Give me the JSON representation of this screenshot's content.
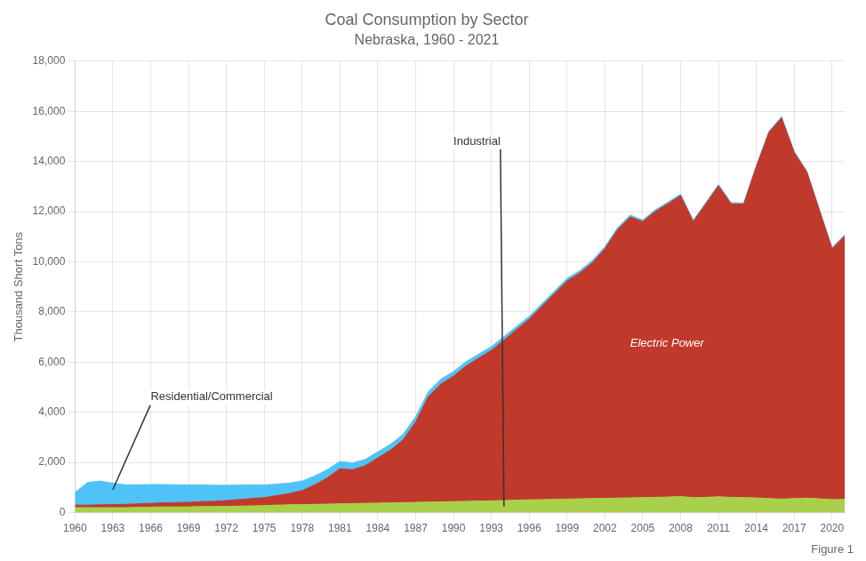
{
  "chart_data": {
    "type": "area",
    "stacked": true,
    "title": "Coal Consumption by Sector",
    "subtitle": "Nebraska, 1960 - 2021",
    "y_label": "Thousand Short Tons",
    "caption": "Figure 1",
    "grid": true,
    "x": [
      1960,
      1961,
      1962,
      1963,
      1964,
      1965,
      1966,
      1967,
      1968,
      1969,
      1970,
      1971,
      1972,
      1973,
      1974,
      1975,
      1976,
      1977,
      1978,
      1979,
      1980,
      1981,
      1982,
      1983,
      1984,
      1985,
      1986,
      1987,
      1988,
      1989,
      1990,
      1991,
      1992,
      1993,
      1994,
      1995,
      1996,
      1997,
      1998,
      1999,
      2000,
      2001,
      2002,
      2003,
      2004,
      2005,
      2006,
      2007,
      2008,
      2009,
      2010,
      2011,
      2012,
      2013,
      2014,
      2015,
      2016,
      2017,
      2018,
      2019,
      2020,
      2021
    ],
    "series": [
      {
        "color": "#a8d04a",
        "values": [
          200,
          200,
          200,
          200,
          200,
          210,
          220,
          230,
          230,
          230,
          240,
          240,
          250,
          260,
          270,
          280,
          300,
          310,
          320,
          330,
          340,
          350,
          360,
          370,
          380,
          390,
          400,
          410,
          420,
          430,
          440,
          450,
          460,
          470,
          480,
          500,
          510,
          520,
          530,
          540,
          550,
          560,
          570,
          580,
          590,
          600,
          610,
          620,
          640,
          600,
          610,
          630,
          610,
          600,
          590,
          560,
          540,
          560,
          580,
          550,
          520,
          530
        ]
      },
      {
        "color": "#c0392b",
        "values": [
          100,
          100,
          110,
          120,
          130,
          140,
          150,
          160,
          170,
          180,
          200,
          210,
          230,
          260,
          290,
          320,
          380,
          450,
          560,
          780,
          1050,
          1400,
          1350,
          1500,
          1800,
          2100,
          2500,
          3200,
          4200,
          4700,
          5000,
          5400,
          5700,
          6000,
          6400,
          6800,
          7200,
          7700,
          8200,
          8700,
          9000,
          9400,
          9950,
          10700,
          11200,
          11000,
          11400,
          11700,
          12000,
          11000,
          11700,
          12400,
          11700,
          11700,
          13200,
          14600,
          15200,
          13800,
          13000,
          11500,
          10000,
          10500
        ]
      },
      {
        "color": "#4fc3f7",
        "values": [
          500,
          900,
          950,
          850,
          780,
          760,
          750,
          730,
          710,
          690,
          670,
          640,
          610,
          580,
          550,
          500,
          460,
          420,
          380,
          350,
          320,
          290,
          270,
          250,
          240,
          230,
          220,
          210,
          200,
          190,
          180,
          170,
          160,
          150,
          140,
          130,
          120,
          110,
          105,
          100,
          95,
          90,
          85,
          80,
          75,
          70,
          65,
          60,
          58,
          55,
          53,
          52,
          50,
          48,
          47,
          45,
          44,
          43,
          42,
          41,
          40,
          39
        ]
      }
    ],
    "xlim": [
      1960,
      2021
    ],
    "xticks": [
      1960,
      1963,
      1966,
      1969,
      1972,
      1975,
      1978,
      1981,
      1984,
      1987,
      1990,
      1993,
      1996,
      1999,
      2002,
      2005,
      2008,
      2011,
      2014,
      2017,
      2020
    ],
    "ylim": [
      0,
      18000
    ],
    "yticks": [
      0,
      {
        "value": 2000,
        "label": "2,000"
      },
      {
        "value": 4000,
        "label": "4,000"
      },
      {
        "value": 6000,
        "label": "6,000"
      },
      {
        "value": 8000,
        "label": "8,000"
      },
      {
        "value": 10000,
        "label": "10,000"
      },
      {
        "value": 12000,
        "label": "12,000"
      },
      {
        "value": 14000,
        "label": "14,000"
      },
      {
        "value": 16000,
        "label": "16,000"
      },
      {
        "value": 18000,
        "label": "18,000"
      }
    ],
    "annotations": [
      {
        "text": "Residential/Commercial",
        "x": 1966,
        "y": 4600,
        "arrow_to": [
          1963,
          915
        ]
      },
      {
        "text": "Industrial",
        "x": 1990,
        "y": 14800,
        "arrow_to": [
          1994,
          240
        ]
      },
      {
        "text": "Electric Power",
        "x": 2004,
        "y": 6500
      }
    ]
  }
}
